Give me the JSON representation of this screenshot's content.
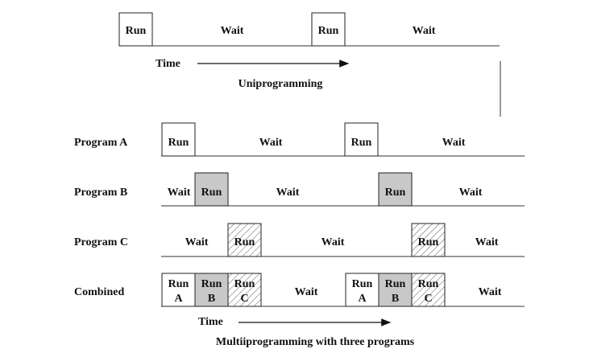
{
  "uniprogramming": {
    "run_label": "Run",
    "wait_label": "Wait",
    "time_label": "Time",
    "caption": "Uniprogramming"
  },
  "multiprogramming": {
    "rows": [
      {
        "label": "Program A",
        "run": "Run",
        "wait": "Wait"
      },
      {
        "label": "Program B",
        "run": "Run",
        "wait": "Wait"
      },
      {
        "label": "Program C",
        "run": "Run",
        "wait": "Wait"
      },
      {
        "label": "Combined",
        "run": "Run",
        "wait": "Wait"
      }
    ],
    "combined_segments": [
      "A",
      "B",
      "C"
    ],
    "time_label": "Time",
    "caption": "Multiiprogramming with three programs"
  },
  "colors": {
    "run_white": "#ffffff",
    "run_gray": "#c8c8c8",
    "line": "#333333"
  }
}
